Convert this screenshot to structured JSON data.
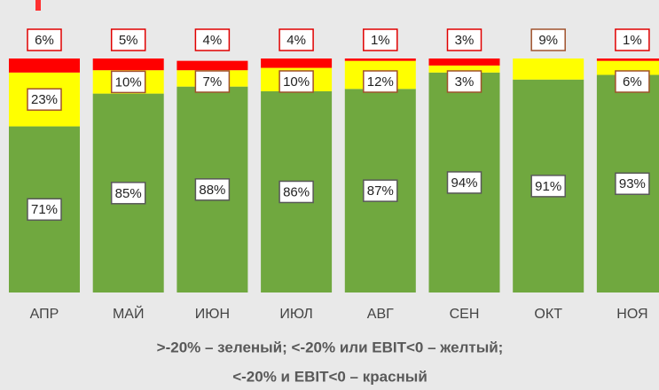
{
  "chart_data": {
    "type": "stacked_bar",
    "categories": [
      "АПР",
      "МАЙ",
      "ИЮН",
      "ИЮЛ",
      "АВГ",
      "СЕН",
      "ОКТ",
      "НОЯ"
    ],
    "series": [
      {
        "name": null,
        "color": "#70a83f",
        "label_border": "#595959",
        "values": [
          71,
          85,
          88,
          86,
          87,
          94,
          91,
          93
        ],
        "value_labels": [
          "71%",
          "85%",
          "88%",
          "86%",
          "87%",
          "94%",
          "91%",
          "93%"
        ]
      },
      {
        "name": null,
        "color": "#ffff00",
        "label_border": "#a0522d",
        "values": [
          23,
          10,
          7,
          10,
          12,
          3,
          9,
          6
        ],
        "value_labels": [
          "23%",
          "10%",
          "7%",
          "10%",
          "12%",
          "3%",
          "9%",
          "6%"
        ]
      },
      {
        "name": null,
        "color": "#ff0000",
        "label_border": "#e00000",
        "values": [
          6,
          5,
          4,
          4,
          1,
          3,
          null,
          1
        ],
        "value_labels": [
          "6%",
          "5%",
          "4%",
          "4%",
          "1%",
          "3%",
          null,
          "1%"
        ]
      }
    ],
    "ylim": [
      0,
      100
    ],
    "notes": [
      ">-20% – зеленый; <-20% или EBIT<0 – желтый;",
      "<-20% и EBIT<0 – красный"
    ]
  }
}
